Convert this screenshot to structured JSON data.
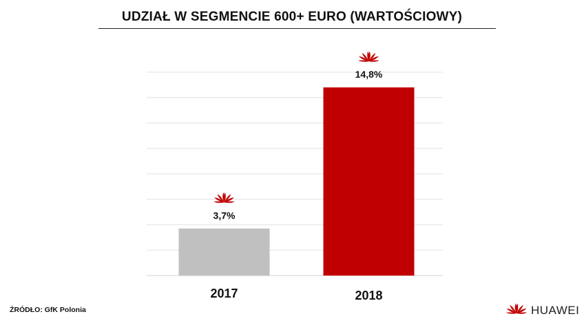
{
  "chart_data": {
    "type": "bar",
    "title": "UDZIAŁ W SEGMENCIE 600+ EURO (WARTOŚCIOWY)",
    "categories": [
      "2017",
      "2018"
    ],
    "values": [
      3.7,
      14.8
    ],
    "value_labels": [
      "3,7%",
      "14,8%"
    ],
    "ylim": [
      0,
      16
    ],
    "grid": true,
    "bar_colors": [
      "#c0c0c0",
      "#c00000"
    ],
    "marker_icon": "huawei-logo-icon",
    "marker_color": "#c00000"
  },
  "footer": {
    "source": "ŹRÓDŁO: GfK Polonia",
    "brand": "HUAWEI",
    "brand_icon": "huawei-logo-icon"
  }
}
